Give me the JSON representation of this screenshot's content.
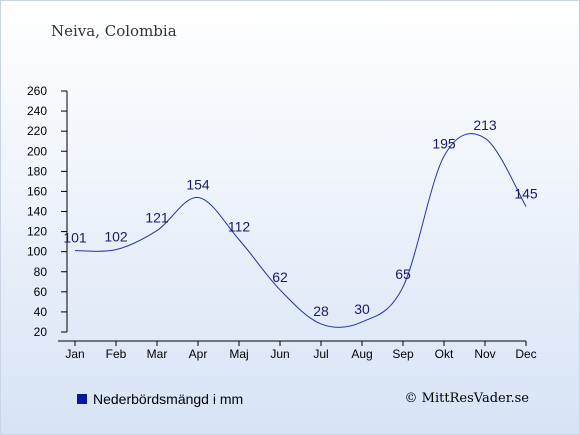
{
  "header": {
    "title": "Neiva, Colombia"
  },
  "legend": {
    "label": "Nederbördsmängd i mm",
    "swatch_color": "#0a18a0"
  },
  "footer": {
    "copyright": "© MittResVader.se"
  },
  "chart_data": {
    "type": "line",
    "title": "Neiva, Colombia",
    "xlabel": "",
    "ylabel": "",
    "ylim": [
      20,
      260
    ],
    "yticks": [
      20,
      40,
      60,
      80,
      100,
      120,
      140,
      160,
      180,
      200,
      220,
      240,
      260
    ],
    "categories": [
      "Jan",
      "Feb",
      "Mar",
      "Apr",
      "Maj",
      "Jun",
      "Jul",
      "Aug",
      "Sep",
      "Okt",
      "Nov",
      "Dec"
    ],
    "series": [
      {
        "name": "Nederbördsmängd i mm",
        "values": [
          101,
          102,
          121,
          154,
          112,
          62,
          28,
          30,
          65,
          195,
          213,
          145
        ],
        "color": "#2233aa"
      }
    ],
    "grid": false,
    "legend_position": "bottom-left"
  }
}
